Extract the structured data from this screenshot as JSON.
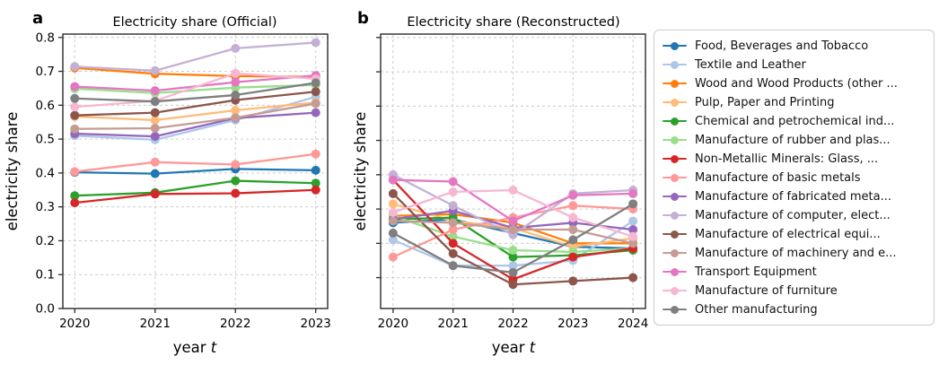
{
  "figure": {
    "background": "#ffffff",
    "grid_color": "#cccccc",
    "spine_color": "#2a2a2a"
  },
  "legend": {
    "position": "right",
    "border_color": "#cccccc"
  },
  "chart_data": [
    {
      "type": "line",
      "panel_label": "a",
      "title": "Electricity share (Official)",
      "xlabel": "year t",
      "xlabel_prefix": "year ",
      "xlabel_var": "t",
      "ylabel": "electricity share",
      "x": [
        2020,
        2021,
        2022,
        2023
      ],
      "ylim": [
        0,
        0.81
      ],
      "yticks": [
        0,
        0.1,
        0.2,
        0.3,
        0.4,
        0.5,
        0.6,
        0.7,
        0.8
      ],
      "ytick_labels": [
        "0.0",
        "0.1",
        "0.2",
        "0.3",
        "0.4",
        "0.5",
        "0.6",
        "0.7",
        "0.8"
      ],
      "grid": true,
      "legend_position": "outside-right",
      "series": [
        {
          "name": "Food, Beverages and Tobacco",
          "color": "#1f77b4",
          "values": [
            0.402,
            0.398,
            0.412,
            0.408
          ]
        },
        {
          "name": "Textile and Leather",
          "color": "#aec7e8",
          "values": [
            0.51,
            0.498,
            0.556,
            0.625
          ]
        },
        {
          "name": "Wood and Wood Products (other ...",
          "color": "#ff7f0e",
          "values": [
            0.71,
            0.693,
            0.686,
            0.684
          ]
        },
        {
          "name": "Pulp, Paper and Printing",
          "color": "#ffbb78",
          "values": [
            0.567,
            0.556,
            0.585,
            0.608
          ]
        },
        {
          "name": "Chemical and petrochemical ind...",
          "color": "#2ca02c",
          "values": [
            0.333,
            0.342,
            0.377,
            0.37
          ]
        },
        {
          "name": "Manufacture of rubber and plas...",
          "color": "#98df8a",
          "values": [
            0.649,
            0.636,
            0.652,
            0.66
          ]
        },
        {
          "name": "Non-Metallic Minerals: Glass, ...",
          "color": "#d62728",
          "values": [
            0.312,
            0.338,
            0.34,
            0.35
          ]
        },
        {
          "name": "Manufacture of basic metals",
          "color": "#ff9896",
          "values": [
            0.404,
            0.432,
            0.425,
            0.456
          ]
        },
        {
          "name": "Manufacture of fabricated meta...",
          "color": "#9467bd",
          "values": [
            0.516,
            0.508,
            0.562,
            0.578
          ]
        },
        {
          "name": "Manufacture of computer, elect...",
          "color": "#c5b0d5",
          "values": [
            0.714,
            0.702,
            0.768,
            0.785
          ]
        },
        {
          "name": "Manufacture of electrical equi...",
          "color": "#8c564b",
          "values": [
            0.57,
            0.578,
            0.615,
            0.64
          ]
        },
        {
          "name": "Manufacture of machinery and e...",
          "color": "#c49c94",
          "values": [
            0.53,
            0.532,
            0.563,
            0.605
          ]
        },
        {
          "name": "Transport Equipment",
          "color": "#e377c2",
          "values": [
            0.655,
            0.643,
            0.668,
            0.688
          ]
        },
        {
          "name": "Manufacture of furniture",
          "color": "#f7b6d2",
          "values": [
            0.595,
            0.613,
            0.694,
            0.678
          ]
        },
        {
          "name": "Other manufacturing",
          "color": "#7f7f7f",
          "values": [
            0.62,
            0.611,
            0.63,
            0.666
          ]
        }
      ]
    },
    {
      "type": "line",
      "panel_label": "b",
      "title": "Electricity share (Reconstructed)",
      "xlabel": "year t",
      "xlabel_prefix": "year ",
      "xlabel_var": "t",
      "ylabel": "electricity share",
      "x": [
        2020,
        2021,
        2022,
        2023,
        2024
      ],
      "ylim": [
        0.01,
        0.81
      ],
      "yticks": [
        0.1,
        0.2,
        0.3,
        0.4,
        0.5,
        0.6,
        0.7,
        0.8
      ],
      "ytick_labels": [],
      "grid": true,
      "note": "y-axis ticks shown without numeric labels",
      "series": [
        {
          "name": "Food, Beverages and Tobacco",
          "color": "#1f77b4",
          "values": [
            0.26,
            0.27,
            0.23,
            0.19,
            0.185
          ]
        },
        {
          "name": "Textile and Leather",
          "color": "#aec7e8",
          "values": [
            0.21,
            0.135,
            0.135,
            0.15,
            0.265
          ]
        },
        {
          "name": "Wood and Wood Products (other ...",
          "color": "#ff7f0e",
          "values": [
            0.28,
            0.285,
            0.26,
            0.2,
            0.2
          ]
        },
        {
          "name": "Pulp, Paper and Printing",
          "color": "#ffbb78",
          "values": [
            0.315,
            0.265,
            0.245,
            0.19,
            0.215
          ]
        },
        {
          "name": "Chemical and petrochemical ind...",
          "color": "#2ca02c",
          "values": [
            0.27,
            0.275,
            0.16,
            0.165,
            0.18
          ]
        },
        {
          "name": "Manufacture of rubber and plas...",
          "color": "#98df8a",
          "values": [
            0.28,
            0.22,
            0.18,
            0.175,
            0.185
          ]
        },
        {
          "name": "Non-Metallic Minerals: Glass, ...",
          "color": "#d62728",
          "values": [
            0.385,
            0.2,
            0.095,
            0.16,
            0.185
          ]
        },
        {
          "name": "Manufacture of basic metals",
          "color": "#ff9896",
          "values": [
            0.16,
            0.24,
            0.275,
            0.31,
            0.3
          ]
        },
        {
          "name": "Manufacture of fabricated meta...",
          "color": "#9467bd",
          "values": [
            0.27,
            0.295,
            0.245,
            0.26,
            0.24
          ]
        },
        {
          "name": "Manufacture of computer, elect...",
          "color": "#c5b0d5",
          "values": [
            0.4,
            0.31,
            0.225,
            0.345,
            0.355
          ]
        },
        {
          "name": "Manufacture of electrical equi...",
          "color": "#8c564b",
          "values": [
            0.345,
            0.17,
            0.08,
            0.09,
            0.1
          ]
        },
        {
          "name": "Manufacture of machinery and e...",
          "color": "#c49c94",
          "values": [
            0.265,
            0.26,
            0.24,
            0.24,
            0.2
          ]
        },
        {
          "name": "Transport Equipment",
          "color": "#e377c2",
          "values": [
            0.385,
            0.38,
            0.265,
            0.34,
            0.345
          ]
        },
        {
          "name": "Manufacture of furniture",
          "color": "#f7b6d2",
          "values": [
            0.29,
            0.35,
            0.355,
            0.275,
            0.22
          ]
        },
        {
          "name": "Other manufacturing",
          "color": "#7f7f7f",
          "values": [
            0.23,
            0.135,
            0.115,
            0.21,
            0.315
          ]
        }
      ]
    }
  ]
}
